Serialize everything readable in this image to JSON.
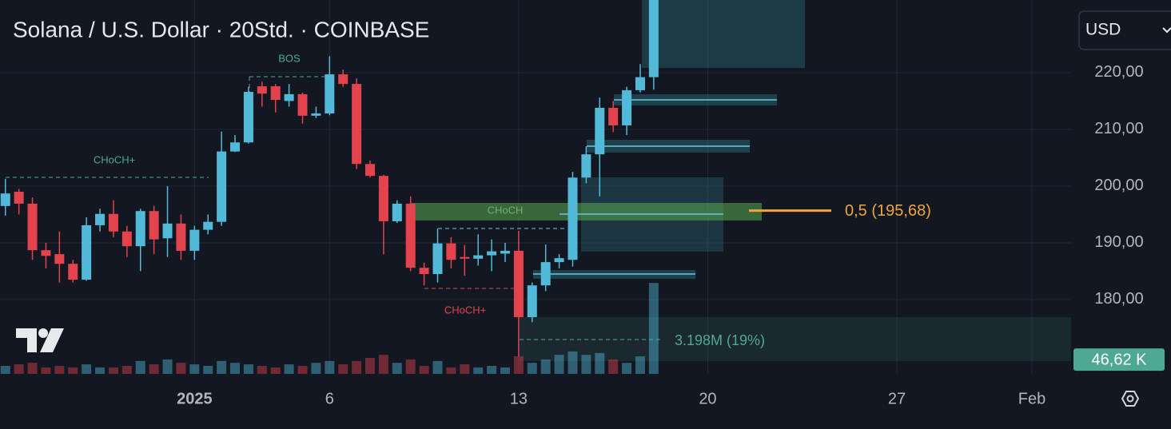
{
  "chart_data": {
    "type": "candlestick",
    "title": "Solana / U.S. Dollar · 20Std. · COINBASE",
    "currency": "USD",
    "xlim": [
      -0.4,
      78.9
    ],
    "xticks": [
      {
        "value": 14,
        "label": "2025"
      },
      {
        "value": 24,
        "label": "6"
      },
      {
        "value": 38,
        "label": "13"
      },
      {
        "value": 52,
        "label": "20"
      },
      {
        "value": 66,
        "label": "27"
      },
      {
        "value": 76,
        "label": "Feb"
      }
    ],
    "ylim": [
      166.9,
      232.8
    ],
    "yticks": [
      {
        "value": 180,
        "label": "180,00"
      },
      {
        "value": 190,
        "label": "190,00"
      },
      {
        "value": 200,
        "label": "200,00"
      },
      {
        "value": 210,
        "label": "210,00"
      },
      {
        "value": 220,
        "label": "220,00"
      }
    ],
    "up_color": "#53b9d8",
    "down_color": "#e2434d",
    "open": [
      196.5,
      199,
      196.9,
      188.7,
      188,
      186.3,
      183.5,
      193.1,
      195.1,
      192,
      189.4,
      195.6,
      190.8,
      193.4,
      188.6,
      192.3,
      193.7,
      206.1,
      207.7,
      217.6,
      217.6,
      215,
      216.2,
      212.4,
      212.8,
      219.7,
      218,
      203.9,
      201.8,
      193.8,
      196.9,
      185.6,
      184.5,
      189.9,
      187.5,
      187.2,
      187.8,
      188.1,
      188.6,
      176.9,
      182.5,
      186.6,
      187,
      201.5,
      205.6,
      213.8,
      210.7,
      216.9,
      219.2
    ],
    "high": [
      201.3,
      199.5,
      198,
      190,
      192,
      187,
      194.5,
      196,
      197.5,
      193,
      196,
      196.5,
      200,
      195,
      193,
      195,
      209.6,
      209,
      217.5,
      218.4,
      218,
      218,
      216.5,
      214,
      222.9,
      220.5,
      219,
      204.5,
      202,
      197.5,
      198.2,
      186.5,
      192.5,
      191,
      189.6,
      191.5,
      190.6,
      190,
      192.1,
      183,
      189.7,
      188,
      202.5,
      207,
      215.6,
      215,
      217.5,
      221.5,
      234
    ],
    "low": [
      194.8,
      195,
      187,
      185.5,
      183,
      183,
      183.3,
      192,
      191,
      187.5,
      185,
      188,
      187.5,
      187,
      187,
      191.5,
      193,
      206,
      207.5,
      214,
      213,
      214,
      211,
      212,
      212.5,
      217.5,
      203,
      201.5,
      188,
      193.5,
      185,
      182.5,
      183,
      185.5,
      184.2,
      186,
      185,
      186.6,
      170,
      176,
      181.5,
      185.5,
      185.8,
      200.5,
      198.2,
      209.5,
      209,
      216.5,
      217
    ],
    "close": [
      198.7,
      196.9,
      188.7,
      187.7,
      186.3,
      183.5,
      193.1,
      195.1,
      192,
      189.4,
      195.6,
      190.6,
      193.4,
      188.6,
      192.3,
      193.7,
      206.1,
      207.7,
      216.6,
      216.3,
      215.2,
      216.2,
      212.4,
      212.8,
      219.7,
      218,
      203.9,
      201.8,
      193.8,
      196.9,
      185.6,
      184.5,
      189.9,
      187,
      187.2,
      187.8,
      188.5,
      188.6,
      176.9,
      182.5,
      186.6,
      187.3,
      201.5,
      205.6,
      213.8,
      210.7,
      216.9,
      219.2,
      233
    ],
    "volume": [
      26,
      31,
      36,
      21,
      26,
      21,
      31,
      21,
      21,
      26,
      42,
      31,
      47,
      36,
      31,
      26,
      42,
      36,
      31,
      26,
      21,
      31,
      26,
      36,
      42,
      31,
      42,
      52,
      62,
      36,
      47,
      26,
      42,
      21,
      31,
      21,
      26,
      21,
      57,
      36,
      47,
      62,
      73,
      62,
      68,
      47,
      36,
      57,
      296
    ],
    "volume_lim": [
      0,
      1216.8
    ],
    "volume_label": {
      "value": 46.62,
      "label": "46,62 K"
    },
    "fib": {
      "value": 195.68,
      "label": "0,5 (195,68)",
      "color": "#f0a43a"
    },
    "annotations": [
      "BOS",
      "CHoCH+",
      "CHoCH",
      "CHoCH+",
      "3.198M (19%)"
    ]
  }
}
